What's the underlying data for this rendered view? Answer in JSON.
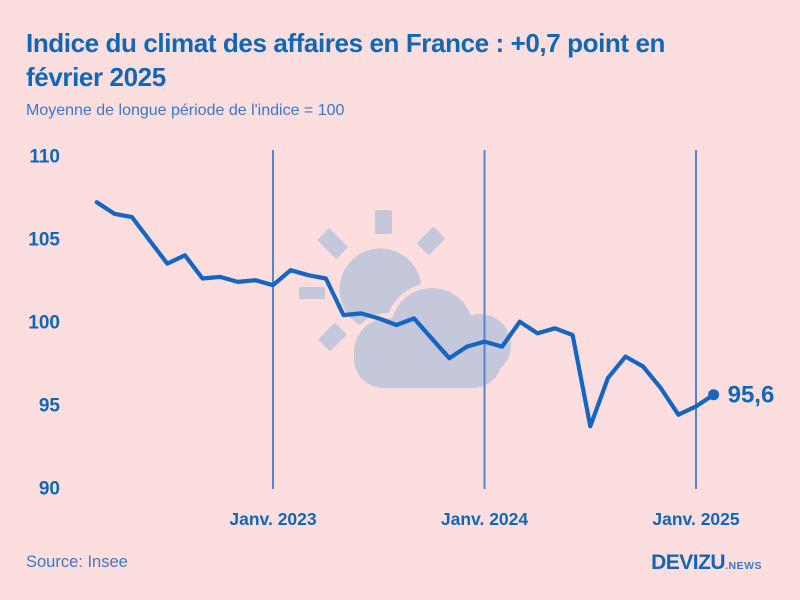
{
  "header": {
    "title_lines": [
      "Indice du climat des affaires en France : +0,7 point en",
      "février 2025"
    ],
    "subtitle": "Moyenne de longue période de l'indice = 100"
  },
  "chart_data": {
    "type": "line",
    "title": "Indice du climat des affaires en France : +0,7 point en février 2025",
    "subtitle": "Moyenne de longue période de l'indice = 100",
    "x_unit": "month",
    "x": [
      "2022-03",
      "2022-04",
      "2022-05",
      "2022-06",
      "2022-07",
      "2022-08",
      "2022-09",
      "2022-10",
      "2022-11",
      "2022-12",
      "2023-01",
      "2023-02",
      "2023-03",
      "2023-04",
      "2023-05",
      "2023-06",
      "2023-07",
      "2023-08",
      "2023-09",
      "2023-10",
      "2023-11",
      "2023-12",
      "2024-01",
      "2024-02",
      "2024-03",
      "2024-04",
      "2024-05",
      "2024-06",
      "2024-07",
      "2024-08",
      "2024-09",
      "2024-10",
      "2024-11",
      "2024-12",
      "2025-01",
      "2025-02"
    ],
    "values": [
      107.2,
      106.5,
      106.3,
      104.9,
      103.5,
      104.0,
      102.6,
      102.7,
      102.4,
      102.5,
      102.2,
      103.1,
      102.8,
      102.6,
      100.4,
      100.5,
      100.2,
      99.8,
      100.2,
      99.0,
      97.8,
      98.5,
      98.8,
      98.5,
      100.0,
      99.3,
      99.6,
      99.2,
      93.7,
      96.6,
      97.9,
      97.3,
      96.0,
      94.4,
      94.9,
      95.6
    ],
    "ylim": [
      90,
      110
    ],
    "y_ticks": [
      110,
      105,
      100,
      95,
      90
    ],
    "x_ticks": [
      {
        "label": "Janv. 2023",
        "index": 10
      },
      {
        "label": "Janv. 2024",
        "index": 22
      },
      {
        "label": "Janv. 2025",
        "index": 34
      }
    ],
    "end_label": "95,6",
    "grid": "vertical-year-lines",
    "legend": "none",
    "watermark": "sun-behind-cloud"
  },
  "footer": {
    "source": "Source: Insee",
    "brand": "DEVIZU",
    "brand_suffix": ".NEWS"
  },
  "colors": {
    "background": "#fcdede",
    "ink": "#1166b5",
    "line": "#1565c2",
    "muted": "#3c77c6",
    "grid": "#5585d2",
    "watermark": "#c5c7db"
  }
}
